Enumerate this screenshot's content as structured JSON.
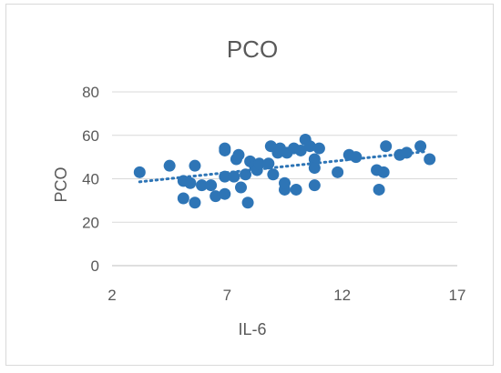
{
  "chart_data": {
    "type": "scatter",
    "title": "PCO",
    "xlabel": "IL-6",
    "ylabel": "PCO",
    "xlim": [
      2,
      17
    ],
    "ylim": [
      0,
      80
    ],
    "xticks": [
      2,
      7,
      12,
      17
    ],
    "yticks": [
      0,
      20,
      40,
      60,
      80
    ],
    "grid": "horizontal",
    "legend": "none",
    "trendline": {
      "style": "dotted",
      "type": "linear",
      "x": [
        3.2,
        15.6
      ],
      "y": [
        38.6,
        52.5
      ]
    },
    "colors": {
      "marker": "#2e75b6",
      "trendline": "#2e75b6",
      "grid": "#d9d9d9"
    },
    "series": [
      {
        "points": [
          [
            3.2,
            43
          ],
          [
            4.5,
            46
          ],
          [
            5.1,
            39
          ],
          [
            5.1,
            31
          ],
          [
            5.4,
            38
          ],
          [
            5.6,
            46
          ],
          [
            5.6,
            29
          ],
          [
            5.9,
            37
          ],
          [
            6.3,
            37
          ],
          [
            6.5,
            32
          ],
          [
            6.9,
            33
          ],
          [
            6.9,
            41
          ],
          [
            6.9,
            54
          ],
          [
            6.9,
            53
          ],
          [
            7.3,
            41
          ],
          [
            7.4,
            49
          ],
          [
            7.5,
            51
          ],
          [
            7.6,
            36
          ],
          [
            7.8,
            42
          ],
          [
            7.9,
            29
          ],
          [
            8.0,
            48
          ],
          [
            8.2,
            46
          ],
          [
            8.3,
            44
          ],
          [
            8.4,
            47
          ],
          [
            8.8,
            47
          ],
          [
            8.9,
            55
          ],
          [
            9.0,
            42
          ],
          [
            9.2,
            52
          ],
          [
            9.3,
            54
          ],
          [
            9.5,
            35
          ],
          [
            9.5,
            38
          ],
          [
            9.6,
            52
          ],
          [
            9.9,
            54
          ],
          [
            10.0,
            35
          ],
          [
            10.2,
            53
          ],
          [
            10.4,
            58
          ],
          [
            10.6,
            55
          ],
          [
            10.8,
            49
          ],
          [
            10.8,
            45
          ],
          [
            10.8,
            37
          ],
          [
            11.0,
            54
          ],
          [
            11.8,
            43
          ],
          [
            12.3,
            51
          ],
          [
            12.6,
            50
          ],
          [
            13.5,
            44
          ],
          [
            13.6,
            35
          ],
          [
            13.8,
            43
          ],
          [
            13.9,
            55
          ],
          [
            14.5,
            51
          ],
          [
            14.8,
            52
          ],
          [
            15.4,
            55
          ],
          [
            15.8,
            49
          ]
        ]
      }
    ]
  }
}
